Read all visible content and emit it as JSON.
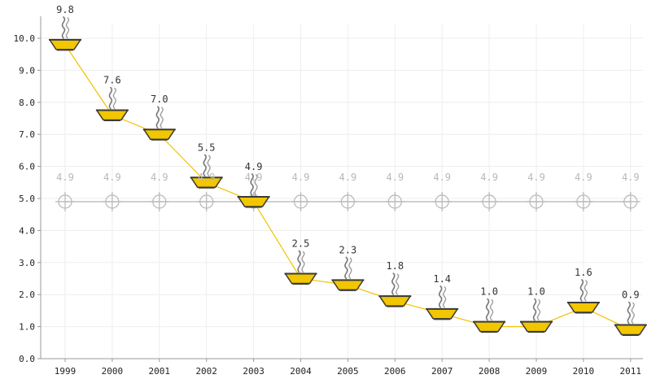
{
  "chart_data": {
    "type": "line",
    "categories": [
      "1999",
      "2000",
      "2001",
      "2002",
      "2003",
      "2004",
      "2005",
      "2006",
      "2007",
      "2008",
      "2009",
      "2010",
      "2011"
    ],
    "series": [
      {
        "values": [
          9.8,
          7.6,
          7.0,
          5.5,
          4.9,
          2.5,
          2.3,
          1.8,
          1.4,
          1.0,
          1.0,
          1.6,
          0.9
        ],
        "value_labels": [
          "9.8",
          "7.6",
          "7.0",
          "5.5",
          "4.9",
          "2.5",
          "2.3",
          "1.8",
          "1.4",
          "1.0",
          "1.0",
          "1.6",
          "0.9"
        ],
        "color": "#f0c419",
        "line_color": "#f2c200",
        "marker": "steaming-bowl-icon"
      },
      {
        "values": [
          4.9,
          4.9,
          4.9,
          4.9,
          4.9,
          4.9,
          4.9,
          4.9,
          4.9,
          4.9,
          4.9,
          4.9,
          4.9
        ],
        "value_labels": [
          "4.9",
          "4.9",
          "4.9",
          "4.9",
          "4.9",
          "4.9",
          "4.9",
          "4.9",
          "4.9",
          "4.9",
          "4.9",
          "4.9",
          "4.9"
        ],
        "color": "#bbbbbb",
        "marker": "crosshair-circle-icon"
      }
    ],
    "y_ticks": [
      "0.0",
      "1.0",
      "2.0",
      "3.0",
      "4.0",
      "5.0",
      "6.0",
      "7.0",
      "8.0",
      "9.0",
      "10.0"
    ],
    "ylim": [
      0,
      10
    ],
    "grid": true,
    "title": "",
    "xlabel": "",
    "ylabel": ""
  }
}
